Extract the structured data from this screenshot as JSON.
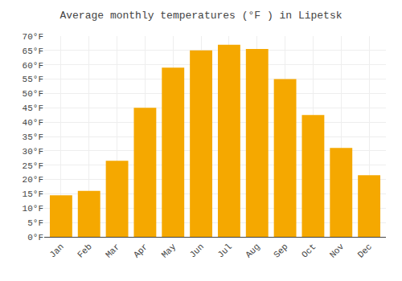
{
  "chart_data": {
    "type": "bar",
    "title": "Average monthly temperatures (°F ) in Lipetsk",
    "categories": [
      "Jan",
      "Feb",
      "Mar",
      "Apr",
      "May",
      "Jun",
      "Jul",
      "Aug",
      "Sep",
      "Oct",
      "Nov",
      "Dec"
    ],
    "values": [
      14.5,
      16,
      26.5,
      45,
      59,
      65,
      67,
      65.5,
      55,
      42.5,
      31,
      21.5
    ],
    "color": "#F5A800",
    "ylim": [
      0,
      70
    ],
    "yticks": [
      {
        "value": 0,
        "label": "0°F"
      },
      {
        "value": 5,
        "label": "5°F"
      },
      {
        "value": 10,
        "label": "10°F"
      },
      {
        "value": 15,
        "label": "15°F"
      },
      {
        "value": 20,
        "label": "20°F"
      },
      {
        "value": 25,
        "label": "25°F"
      },
      {
        "value": 30,
        "label": "30°F"
      },
      {
        "value": 35,
        "label": "35°F"
      },
      {
        "value": 40,
        "label": "40°F"
      },
      {
        "value": 45,
        "label": "45°F"
      },
      {
        "value": 50,
        "label": "50°F"
      },
      {
        "value": 55,
        "label": "55°F"
      },
      {
        "value": 60,
        "label": "60°F"
      },
      {
        "value": 65,
        "label": "65°F"
      },
      {
        "value": 70,
        "label": "70°F"
      }
    ],
    "grid": true
  }
}
